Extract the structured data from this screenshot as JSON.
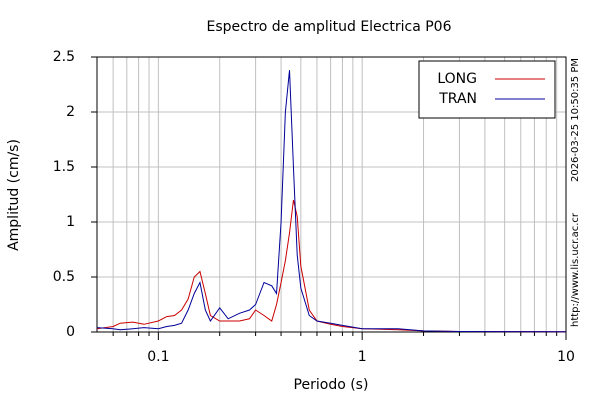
{
  "chart_data": {
    "type": "line",
    "title": "Espectro de amplitud Electrica P06",
    "xlabel": "Periodo (s)",
    "ylabel": "Amplitud (cm/s)",
    "annotations": [
      "2026-03-25 10:50:35 PM",
      "http://www.lis.ucr.ac.cr"
    ],
    "xscale": "log",
    "grid": true,
    "legend": "upper right",
    "xlim": [
      0.05,
      10
    ],
    "ylim": [
      0,
      2.5
    ],
    "xticks": [
      0.1,
      1,
      10
    ],
    "xminorticks": [
      0.06,
      0.07,
      0.08,
      0.09,
      0.2,
      0.3,
      0.4,
      0.5,
      0.6,
      0.7,
      0.8,
      0.9,
      2,
      3,
      4,
      5,
      6,
      7,
      8,
      9
    ],
    "yticks": [
      0,
      0.5,
      1,
      1.5,
      2,
      2.5
    ],
    "x": [
      0.05,
      0.06,
      0.065,
      0.075,
      0.085,
      0.1,
      0.11,
      0.12,
      0.13,
      0.14,
      0.15,
      0.16,
      0.17,
      0.18,
      0.2,
      0.22,
      0.25,
      0.28,
      0.3,
      0.33,
      0.36,
      0.38,
      0.4,
      0.42,
      0.44,
      0.46,
      0.48,
      0.5,
      0.55,
      0.6,
      0.7,
      0.8,
      1,
      1.5,
      2,
      3,
      5,
      10
    ],
    "series": [
      {
        "name": "LONG",
        "color": "#cc0000",
        "values": [
          0.03,
          0.05,
          0.08,
          0.09,
          0.07,
          0.1,
          0.14,
          0.15,
          0.2,
          0.3,
          0.5,
          0.55,
          0.35,
          0.15,
          0.1,
          0.1,
          0.1,
          0.12,
          0.2,
          0.15,
          0.1,
          0.25,
          0.45,
          0.65,
          0.9,
          1.2,
          1.05,
          0.6,
          0.2,
          0.1,
          0.07,
          0.05,
          0.03,
          0.02,
          0.01,
          0.005,
          0.003,
          0.002
        ]
      },
      {
        "name": "TRAN",
        "color": "#000099",
        "values": [
          0.04,
          0.03,
          0.02,
          0.03,
          0.04,
          0.03,
          0.05,
          0.06,
          0.08,
          0.2,
          0.35,
          0.45,
          0.2,
          0.1,
          0.22,
          0.12,
          0.17,
          0.2,
          0.25,
          0.45,
          0.42,
          0.35,
          1.0,
          2.0,
          2.38,
          1.5,
          0.7,
          0.4,
          0.15,
          0.1,
          0.08,
          0.06,
          0.03,
          0.03,
          0.01,
          0.005,
          0.003,
          0.002
        ]
      }
    ]
  }
}
